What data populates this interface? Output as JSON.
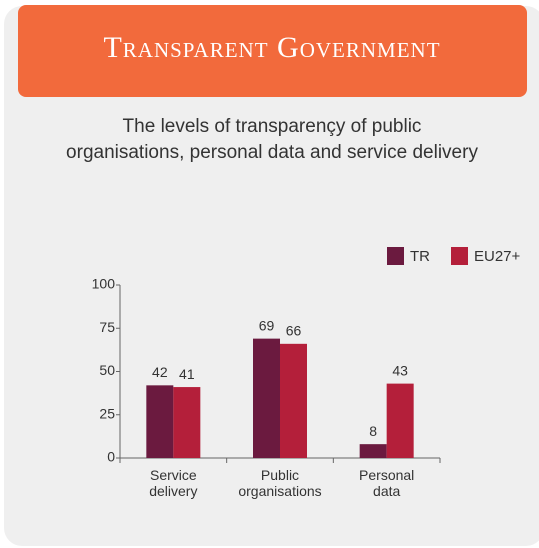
{
  "chart_data": {
    "type": "bar",
    "title": "Transparent Government",
    "subtitle": [
      "The levels of transparençy of public",
      "organisations, personal data and service delivery"
    ],
    "categories": [
      "Service delivery",
      "Public organisations",
      "Personal data"
    ],
    "series": [
      {
        "name": "TR",
        "color": "#6b1a3f",
        "values": [
          42,
          69,
          8
        ]
      },
      {
        "name": "EU27+",
        "color": "#b41f3a",
        "values": [
          41,
          66,
          43
        ]
      }
    ],
    "ylim": [
      0,
      100
    ],
    "yticks": [
      0,
      25,
      50,
      75,
      100
    ],
    "legend": "top-right"
  }
}
